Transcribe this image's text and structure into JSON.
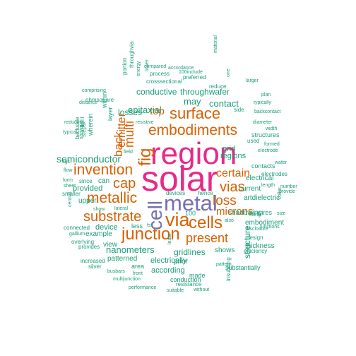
{
  "palette": {
    "green": "#1b9e77",
    "orange": "#d95f02",
    "purple": "#7570b3",
    "magenta": "#e7298a"
  },
  "words": [
    {
      "text": "solar",
      "color": "magenta"
    },
    {
      "text": "region",
      "color": "magenta"
    },
    {
      "text": "metal",
      "color": "purple"
    },
    {
      "text": "cell",
      "color": "purple"
    },
    {
      "text": "embodiments",
      "color": "orange"
    },
    {
      "text": "surface",
      "color": "orange"
    },
    {
      "text": "fig",
      "color": "orange"
    },
    {
      "text": "cells",
      "color": "orange"
    },
    {
      "text": "via",
      "color": "orange"
    },
    {
      "text": "junction",
      "color": "orange"
    },
    {
      "text": "invention",
      "color": "orange"
    },
    {
      "text": "metallic",
      "color": "orange"
    },
    {
      "text": "substrate",
      "color": "orange"
    },
    {
      "text": "cap",
      "color": "orange"
    },
    {
      "text": "vias",
      "color": "orange"
    },
    {
      "text": "loss",
      "color": "orange"
    },
    {
      "text": "present",
      "color": "orange"
    },
    {
      "text": "back",
      "color": "orange"
    },
    {
      "text": "multi",
      "color": "orange"
    },
    {
      "text": "emitter",
      "color": "orange"
    },
    {
      "text": "certain",
      "color": "orange"
    },
    {
      "text": "microns",
      "color": "orange"
    },
    {
      "text": "top",
      "color": "orange"
    },
    {
      "text": "semiconductor",
      "color": "green"
    },
    {
      "text": "epitaxial",
      "color": "green"
    },
    {
      "text": "may",
      "color": "green"
    },
    {
      "text": "contact",
      "color": "green"
    },
    {
      "text": "losses",
      "color": "green"
    },
    {
      "text": "conductive",
      "color": "green"
    },
    {
      "text": "throughwafer",
      "color": "green"
    },
    {
      "text": "nanometers",
      "color": "green"
    },
    {
      "text": "gridlines",
      "color": "green"
    },
    {
      "text": "provided",
      "color": "green"
    },
    {
      "text": "regions",
      "color": "green"
    },
    {
      "text": "grid",
      "color": "green"
    },
    {
      "text": "structure",
      "color": "green"
    },
    {
      "text": "electrically",
      "color": "green"
    },
    {
      "text": "according",
      "color": "green"
    },
    {
      "text": "device",
      "color": "green"
    },
    {
      "text": "current",
      "color": "green"
    },
    {
      "text": "artdielectric",
      "color": "green"
    },
    {
      "text": "electrical",
      "color": "green"
    },
    {
      "text": "embodiment",
      "color": "green"
    },
    {
      "text": "thickness",
      "color": "green"
    },
    {
      "text": "shows",
      "color": "green"
    },
    {
      "text": "shadowing",
      "color": "green"
    },
    {
      "text": "patterned",
      "color": "green"
    },
    {
      "text": "example",
      "color": "green"
    },
    {
      "text": "view",
      "color": "green"
    },
    {
      "text": "can",
      "color": "green"
    },
    {
      "text": "upper",
      "color": "green"
    },
    {
      "text": "less",
      "color": "green"
    },
    {
      "text": "100",
      "color": "green"
    },
    {
      "text": "wires",
      "color": "green"
    },
    {
      "text": "prior",
      "color": "green"
    },
    {
      "text": "made",
      "color": "green"
    },
    {
      "text": "area",
      "color": "green"
    },
    {
      "text": "conduction",
      "color": "green"
    },
    {
      "text": "resistance",
      "color": "green"
    },
    {
      "text": "pattern",
      "color": "green"
    },
    {
      "text": "substantially",
      "color": "green"
    },
    {
      "text": "insulating",
      "color": "green"
    },
    {
      "text": "contacts",
      "color": "green"
    },
    {
      "text": "electrodes",
      "color": "green"
    },
    {
      "text": "structures",
      "color": "green"
    },
    {
      "text": "used",
      "color": "green"
    },
    {
      "text": "side",
      "color": "green"
    },
    {
      "text": "crosssectional",
      "color": "green"
    },
    {
      "text": "process",
      "color": "green"
    },
    {
      "text": "preferred",
      "color": "green"
    },
    {
      "text": "reduce",
      "color": "green"
    },
    {
      "text": "portion",
      "color": "green"
    },
    {
      "text": "throughvia",
      "color": "green"
    },
    {
      "text": "ohmsquare",
      "color": "green"
    },
    {
      "text": "within",
      "color": "green"
    },
    {
      "text": "wherein",
      "color": "green"
    },
    {
      "text": "layer",
      "color": "green"
    },
    {
      "text": "light",
      "color": "green"
    },
    {
      "text": "backside",
      "color": "green"
    },
    {
      "text": "steps",
      "color": "green"
    },
    {
      "text": "figs",
      "color": "green"
    },
    {
      "text": "since",
      "color": "green"
    },
    {
      "text": "form",
      "color": "green"
    },
    {
      "text": "flow",
      "color": "green"
    },
    {
      "text": "sheet",
      "color": "green"
    },
    {
      "text": "smaller",
      "color": "green"
    },
    {
      "text": "show",
      "color": "green"
    },
    {
      "text": "lateral",
      "color": "green"
    },
    {
      "text": "connected",
      "color": "green"
    },
    {
      "text": "gallium",
      "color": "green"
    },
    {
      "text": "overlying",
      "color": "green"
    },
    {
      "text": "provides",
      "color": "green"
    },
    {
      "text": "increased",
      "color": "green"
    },
    {
      "text": "silver",
      "color": "green"
    },
    {
      "text": "busbars",
      "color": "green"
    },
    {
      "text": "front",
      "color": "green"
    },
    {
      "text": "multijunction",
      "color": "green"
    },
    {
      "text": "performance",
      "color": "green"
    },
    {
      "text": "suitable",
      "color": "green"
    },
    {
      "text": "without",
      "color": "green"
    },
    {
      "text": "devices",
      "color": "green"
    },
    {
      "text": "hence",
      "color": "green"
    },
    {
      "text": "fsf",
      "color": "green"
    },
    {
      "text": "also",
      "color": "green"
    },
    {
      "text": "least",
      "color": "green"
    },
    {
      "text": "disclosure",
      "color": "green"
    },
    {
      "text": "design",
      "color": "green"
    },
    {
      "text": "efficiency",
      "color": "green"
    },
    {
      "text": "filling",
      "color": "green"
    },
    {
      "text": "length",
      "color": "green"
    },
    {
      "text": "junctions",
      "color": "green"
    },
    {
      "text": "provide",
      "color": "green"
    },
    {
      "text": "number",
      "color": "green"
    },
    {
      "text": "wafer",
      "color": "green"
    },
    {
      "text": "collar",
      "color": "green"
    },
    {
      "text": "electrode",
      "color": "green"
    },
    {
      "text": "formed",
      "color": "green"
    },
    {
      "text": "width",
      "color": "green"
    },
    {
      "text": "diameter",
      "color": "green"
    },
    {
      "text": "backcontact",
      "color": "green"
    },
    {
      "text": "typically",
      "color": "green"
    },
    {
      "text": "plan",
      "color": "green"
    },
    {
      "text": "larger",
      "color": "green"
    },
    {
      "text": "one",
      "color": "green"
    },
    {
      "text": "material",
      "color": "green"
    },
    {
      "text": "compared",
      "color": "green"
    },
    {
      "text": "accordance",
      "color": "green"
    },
    {
      "text": "100include",
      "color": "green"
    },
    {
      "text": "lower",
      "color": "green"
    },
    {
      "text": "energy",
      "color": "green"
    },
    {
      "text": "comprising",
      "color": "green"
    },
    {
      "text": "distance",
      "color": "green"
    },
    {
      "text": "reducing",
      "color": "green"
    },
    {
      "text": "typical",
      "color": "green"
    },
    {
      "text": "shown",
      "color": "green"
    },
    {
      "text": "resistive",
      "color": "green"
    },
    {
      "text": "field",
      "color": "green"
    },
    {
      "text": "central",
      "color": "green"
    },
    {
      "text": "size",
      "color": "green"
    }
  ]
}
